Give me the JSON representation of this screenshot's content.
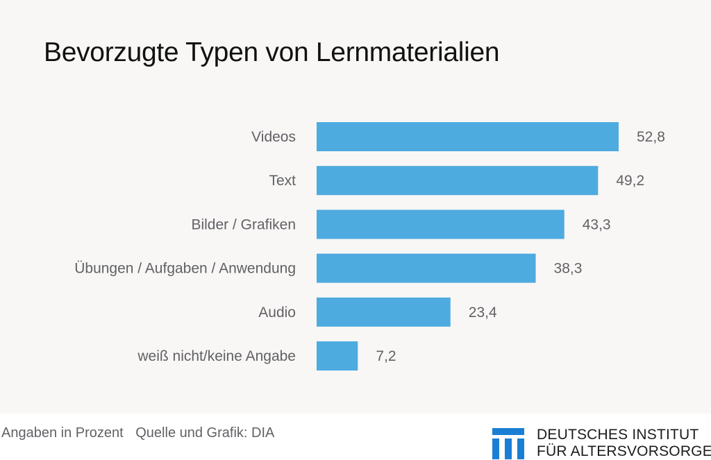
{
  "chart_data": {
    "type": "bar",
    "orientation": "horizontal",
    "title": "Bevorzugte Typen von Lernmaterialien",
    "categories": [
      "Videos",
      "Text",
      "Bilder / Grafiken",
      "Übungen / Aufgaben / Anwendung",
      "Audio",
      "weiß nicht/keine Angabe"
    ],
    "values": [
      52.8,
      49.2,
      43.3,
      38.3,
      23.4,
      7.2
    ],
    "value_labels": [
      "52,8",
      "49,2",
      "43,3",
      "38,3",
      "23,4",
      "7,2"
    ],
    "xlabel": "",
    "ylabel": "",
    "unit": "Prozent",
    "xlim": [
      0,
      52.8
    ],
    "grid": false,
    "legend": "none",
    "bar_color": "#4eabe0"
  },
  "footer": {
    "note": "Angaben in Prozent",
    "source": "Quelle und Grafik: DIA"
  },
  "brand": {
    "name_line1": "DEUTSCHES INSTITUT",
    "name_line2": "FÜR ALTERSVORSORGE",
    "logo_icon": "dia-pillars-logo",
    "color": "#1a7fd4"
  }
}
